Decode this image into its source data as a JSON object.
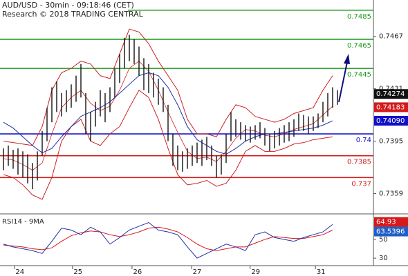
{
  "header": {
    "title": "AUD/USD - 30min - 09:18:46 (CET)",
    "subtitle": "Research © 2018 TRADING CENTRAL"
  },
  "chart_data": {
    "type": "range_bar",
    "ylim": [
      0.7345,
      0.7492
    ],
    "yticks": [
      0.7467,
      0.7431,
      0.7395,
      0.7359
    ],
    "xticks": [
      {
        "value": 3.4,
        "label": "24"
      },
      {
        "value": 15.4,
        "label": "25"
      },
      {
        "value": 27.7,
        "label": "26"
      },
      {
        "value": 40,
        "label": "27"
      },
      {
        "value": 52.1,
        "label": "29"
      },
      {
        "value": 65.6,
        "label": "31"
      }
    ],
    "bar_color": "#111111",
    "low": [
      0.7375,
      0.7378,
      0.7376,
      0.7372,
      0.737,
      0.7366,
      0.7362,
      0.7368,
      0.7385,
      0.7395,
      0.7408,
      0.7415,
      0.7412,
      0.7415,
      0.7418,
      0.7422,
      0.7425,
      0.74,
      0.7395,
      0.7405,
      0.7412,
      0.7408,
      0.7415,
      0.7425,
      0.7435,
      0.7445,
      0.745,
      0.7448,
      0.744,
      0.743,
      0.7428,
      0.7425,
      0.742,
      0.7415,
      0.7395,
      0.7378,
      0.7375,
      0.7374,
      0.7376,
      0.7378,
      0.738,
      0.7378,
      0.7382,
      0.7378,
      0.737,
      0.7372,
      0.738,
      0.7395,
      0.7398,
      0.7396,
      0.7395,
      0.7394,
      0.7396,
      0.7397,
      0.7392,
      0.7388,
      0.739,
      0.7392,
      0.7394,
      0.7395,
      0.7398,
      0.7402,
      0.7402,
      0.74,
      0.7402,
      0.7404,
      0.7408,
      0.7412,
      0.7418,
      0.742
    ],
    "high": [
      0.739,
      0.7392,
      0.7389,
      0.739,
      0.7388,
      0.7386,
      0.738,
      0.7388,
      0.7402,
      0.7418,
      0.7432,
      0.7436,
      0.7428,
      0.743,
      0.7434,
      0.744,
      0.7448,
      0.7428,
      0.7415,
      0.7422,
      0.743,
      0.7428,
      0.7432,
      0.7445,
      0.7455,
      0.7466,
      0.7468,
      0.7465,
      0.746,
      0.7452,
      0.7448,
      0.7442,
      0.7438,
      0.7432,
      0.742,
      0.74,
      0.7392,
      0.7388,
      0.739,
      0.7392,
      0.7394,
      0.7396,
      0.7398,
      0.7392,
      0.7385,
      0.7386,
      0.74,
      0.7415,
      0.741,
      0.7408,
      0.7406,
      0.7405,
      0.7406,
      0.7408,
      0.7404,
      0.74,
      0.7402,
      0.7404,
      0.7406,
      0.7408,
      0.741,
      0.7414,
      0.7413,
      0.7412,
      0.7412,
      0.7414,
      0.7422,
      0.7428,
      0.7432,
      0.743
    ],
    "band_color": "#cc1f1f",
    "band_upper": [
      0.7395,
      0.7394,
      0.7393,
      0.7392,
      0.7405,
      0.743,
      0.7442,
      0.7445,
      0.745,
      0.7448,
      0.744,
      0.7438,
      0.7455,
      0.7472,
      0.747,
      0.7462,
      0.745,
      0.744,
      0.743,
      0.741,
      0.74,
      0.74,
      0.7398,
      0.741,
      0.742,
      0.7418,
      0.7412,
      0.741,
      0.7408,
      0.741,
      0.7414,
      0.7416,
      0.7418,
      0.743,
      0.744
    ],
    "band_middle": [
      0.7383,
      0.7382,
      0.7379,
      0.7375,
      0.738,
      0.74,
      0.7418,
      0.7425,
      0.743,
      0.7421,
      0.7416,
      0.7419,
      0.743,
      0.7445,
      0.745,
      0.7443,
      0.743,
      0.7415,
      0.7401,
      0.7388,
      0.7383,
      0.7384,
      0.7381,
      0.7388,
      0.7397,
      0.7403,
      0.7402,
      0.7399,
      0.7398,
      0.74,
      0.7403,
      0.7405,
      0.7407,
      0.7413,
      0.7419
    ],
    "band_lower": [
      0.7372,
      0.737,
      0.7365,
      0.7358,
      0.7355,
      0.737,
      0.7395,
      0.7405,
      0.741,
      0.7395,
      0.7392,
      0.74,
      0.7405,
      0.7418,
      0.743,
      0.7425,
      0.741,
      0.739,
      0.7372,
      0.7365,
      0.7366,
      0.7368,
      0.7364,
      0.7366,
      0.7375,
      0.7388,
      0.7392,
      0.7388,
      0.7388,
      0.739,
      0.7393,
      0.7394,
      0.7396,
      0.7397,
      0.7398
    ],
    "ma_color": "#1f2ea8",
    "ma": [
      0.7408,
      0.7404,
      0.7398,
      0.7392,
      0.7387,
      0.739,
      0.7398,
      0.7405,
      0.7412,
      0.7415,
      0.7418,
      0.7422,
      0.7428,
      0.7434,
      0.744,
      0.7442,
      0.744,
      0.7432,
      0.742,
      0.7405,
      0.7396,
      0.7392,
      0.7388,
      0.7386,
      0.739,
      0.7395,
      0.7398,
      0.74,
      0.74,
      0.7401,
      0.7402,
      0.7403,
      0.7404,
      0.7406,
      0.7409
    ],
    "levels": [
      {
        "value": 0.7485,
        "color": "#1e9a1e"
      },
      {
        "value": 0.7465,
        "color": "#1e9a1e"
      },
      {
        "value": 0.7445,
        "color": "#1e9a1e"
      },
      {
        "value": 0.74,
        "color": "#1010c8"
      },
      {
        "value": 0.7385,
        "color": "#d41a1a"
      },
      {
        "value": 0.737,
        "color": "#d41a1a"
      }
    ],
    "price_tags": [
      {
        "value": 0.74274,
        "color": "#111111"
      },
      {
        "value": 0.74183,
        "color": "#d41a1a"
      },
      {
        "value": 0.7409,
        "label": "0.74090",
        "color": "#1010c8"
      }
    ],
    "rsi": {
      "title": "RSI14 - 9MA",
      "ylim": [
        22,
        75
      ],
      "yticks": [
        50,
        30
      ],
      "values": [
        45,
        42,
        40,
        38,
        35,
        48,
        62,
        60,
        55,
        63,
        58,
        45,
        52,
        60,
        64,
        68,
        60,
        58,
        55,
        42,
        30,
        35,
        40,
        45,
        42,
        38,
        55,
        58,
        52,
        50,
        48,
        52,
        55,
        58,
        66
      ],
      "color": "#1f2ea8",
      "ma": [
        44,
        43,
        42,
        40,
        39,
        41,
        48,
        54,
        57,
        59,
        58,
        55,
        53,
        55,
        58,
        62,
        63,
        61,
        58,
        52,
        45,
        40,
        38,
        40,
        42,
        42,
        46,
        50,
        53,
        52,
        51,
        51,
        53,
        55,
        60
      ],
      "ma_color": "#d41a1a",
      "tags": [
        {
          "value": 64.93,
          "color": "#d41a1a"
        },
        {
          "value": 63.5396,
          "color": "#1f5fc8"
        }
      ]
    }
  }
}
